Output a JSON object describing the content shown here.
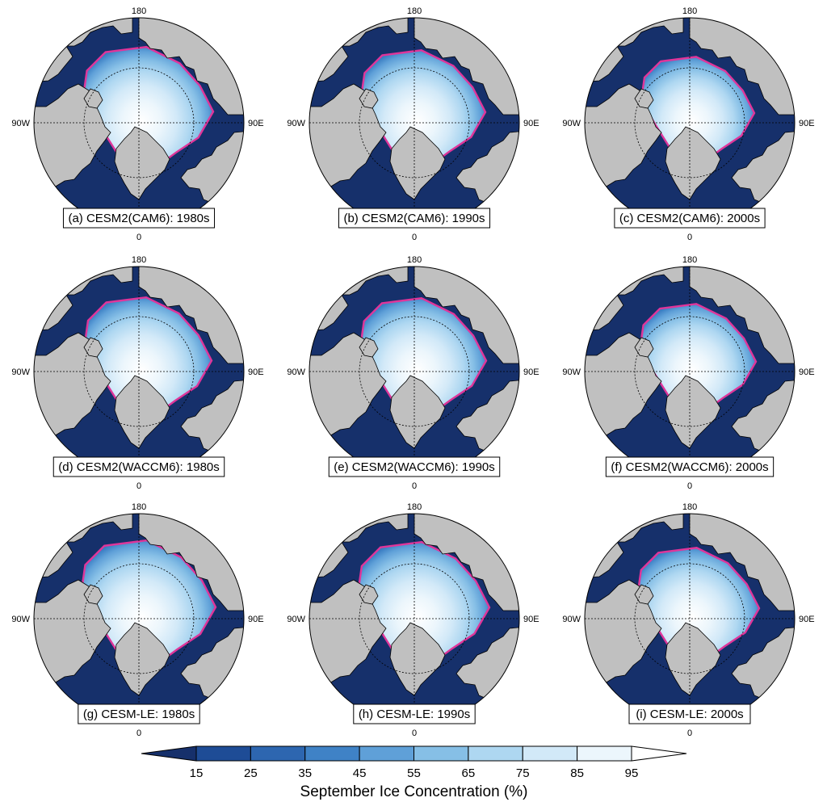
{
  "figure": {
    "colorbar": {
      "title": "September Ice Concentration (%)",
      "ticks": [
        "15",
        "25",
        "35",
        "45",
        "55",
        "65",
        "75",
        "85",
        "95"
      ],
      "colors": [
        "#16306b",
        "#1e4c96",
        "#2d66b0",
        "#3f82c6",
        "#5fa0d8",
        "#86bfe6",
        "#aed7f1",
        "#d2e9f8",
        "#ecf6fc",
        "#ffffff"
      ]
    },
    "lon_labels": {
      "top": "180",
      "bottom": "0",
      "left": "90W",
      "right": "90E"
    },
    "colors": {
      "land": "#c0c0c0",
      "ocean": "#16306b",
      "ice_edge": "#e0359a"
    },
    "panels": [
      {
        "title": "(a) CESM2(CAM6): 1980s",
        "ice_extent": 0.92
      },
      {
        "title": "(b) CESM2(CAM6): 1990s",
        "ice_extent": 0.88
      },
      {
        "title": "(c) CESM2(CAM6): 2000s",
        "ice_extent": 0.8
      },
      {
        "title": "(d) CESM2(WACCM6): 1980s",
        "ice_extent": 0.9
      },
      {
        "title": "(e) CESM2(WACCM6): 1990s",
        "ice_extent": 0.89
      },
      {
        "title": "(f) CESM2(WACCM6): 2000s",
        "ice_extent": 0.82
      },
      {
        "title": "(g) CESM-LE: 1980s",
        "ice_extent": 0.95
      },
      {
        "title": "(h) CESM-LE: 1990s",
        "ice_extent": 0.93
      },
      {
        "title": "(i) CESM-LE: 2000s",
        "ice_extent": 0.86
      }
    ]
  }
}
